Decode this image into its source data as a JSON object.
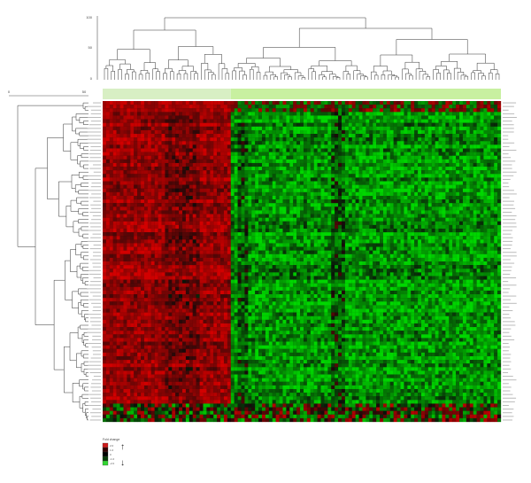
{
  "chart_data": {
    "type": "heatmap",
    "title": "",
    "xlabel": "",
    "ylabel": "",
    "n_columns": 115,
    "n_rows": 88,
    "column_groups": [
      {
        "name": "",
        "color": "#d8efc4",
        "n_columns": 37
      },
      {
        "name": "",
        "color": "#c8f0a0",
        "n_columns": 78
      }
    ],
    "row_blocks": [
      {
        "rows": [
          0,
          2
        ],
        "pattern": "top rows: red in left block, green-red mixed in right"
      },
      {
        "rows": [
          3,
          82
        ],
        "pattern": "left block high (red, up-regulated), right block low (green, down-regulated)"
      },
      {
        "rows": [
          83,
          87
        ],
        "pattern": "bottom rows: mixed red/green/black"
      }
    ],
    "color_scale": {
      "colors": [
        "#cc1b1b",
        "#330000",
        "#000000",
        "#0a3d0a",
        "#33d633"
      ],
      "labels": [
        "2.0",
        "1.0",
        "0",
        "-1.0",
        "-2.0"
      ],
      "legend_title": "Fold change",
      "up_arrow": "↑",
      "down_arrow": "↓"
    },
    "dendrogram_axis_ticks": {
      "top": [
        "100",
        "50",
        "0"
      ],
      "left": [
        "0",
        "50"
      ]
    }
  }
}
